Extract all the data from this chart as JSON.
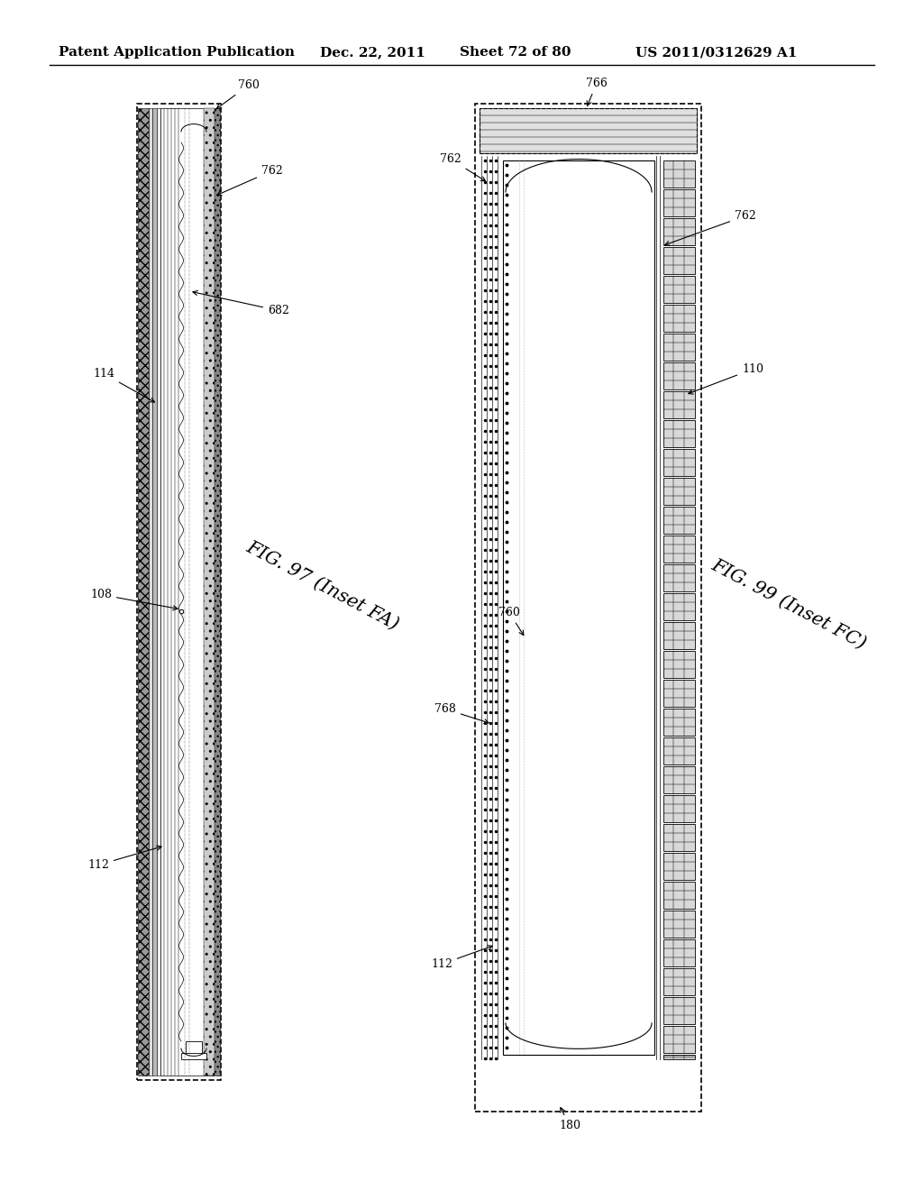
{
  "bg_color": "#ffffff",
  "header_text": "Patent Application Publication",
  "header_date": "Dec. 22, 2011",
  "header_sheet": "Sheet 72 of 80",
  "header_patent": "US 2011/0312629 A1",
  "fig97_label": "FIG. 97 (Inset FA)",
  "fig99_label": "FIG. 99 (Inset FC)"
}
